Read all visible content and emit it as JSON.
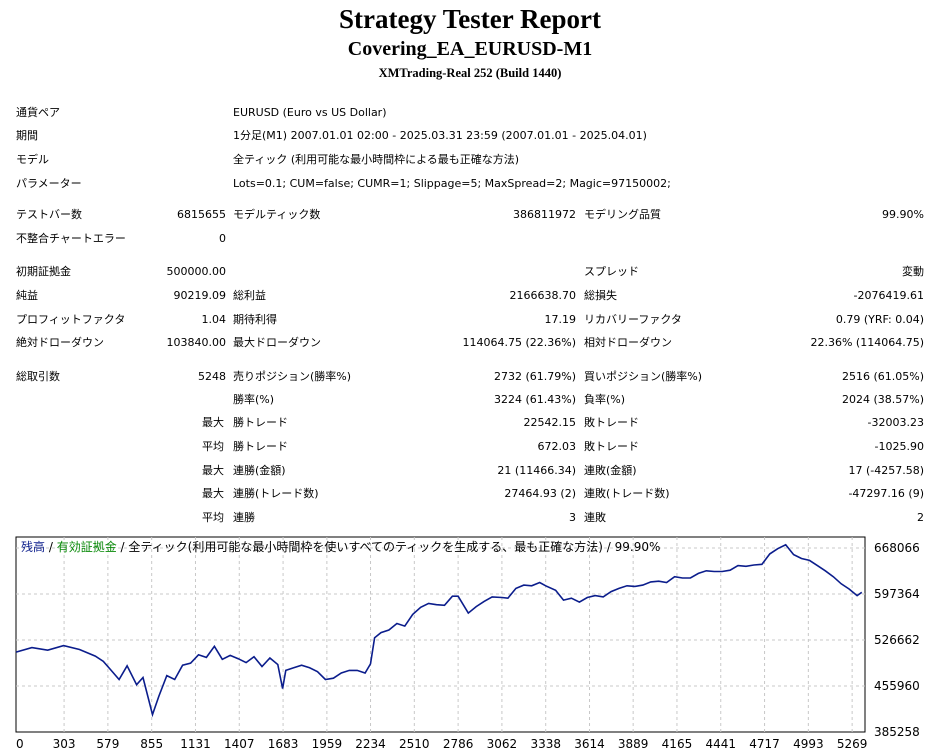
{
  "header": {
    "title": "Strategy Tester Report",
    "subtitle": "Covering_EA_EURUSD-M1",
    "build": "XMTrading-Real 252 (Build 1440)"
  },
  "info": {
    "pair_label": "通貨ペア",
    "pair_value": "EURUSD (Euro vs US Dollar)",
    "period_label": "期間",
    "period_value": "1分足(M1) 2007.01.01 02:00 - 2025.03.31 23:59 (2007.01.01 - 2025.04.01)",
    "model_label": "モデル",
    "model_value": "全ティック (利用可能な最小時間枠による最も正確な方法)",
    "params_label": "パラメーター",
    "params_value": "Lots=0.1; CUM=false; CUMR=1; Slippage=5; MaxSpread=2; Magic=97150002;"
  },
  "stats": {
    "bars_label": "テストバー数",
    "bars_value": "6815655",
    "ticks_label": "モデルティック数",
    "ticks_value": "386811972",
    "quality_label": "モデリング品質",
    "quality_value": "99.90%",
    "mismatch_label": "不整合チャートエラー",
    "mismatch_value": "0",
    "deposit_label": "初期証拠金",
    "deposit_value": "500000.00",
    "spread_label": "スプレッド",
    "spread_value": "変動",
    "net_label": "純益",
    "net_value": "90219.09",
    "gross_profit_label": "総利益",
    "gross_profit_value": "2166638.70",
    "gross_loss_label": "総損失",
    "gross_loss_value": "-2076419.61",
    "pf_label": "プロフィットファクタ",
    "pf_value": "1.04",
    "expected_label": "期待利得",
    "expected_value": "17.19",
    "recovery_label": "リカバリーファクタ",
    "recovery_value": "0.79 (YRF: 0.04)",
    "abs_dd_label": "絶対ドローダウン",
    "abs_dd_value": "103840.00",
    "max_dd_label": "最大ドローダウン",
    "max_dd_value": "114064.75 (22.36%)",
    "rel_dd_label": "相対ドローダウン",
    "rel_dd_value": "22.36% (114064.75)",
    "trades_label": "総取引数",
    "trades_value": "5248",
    "short_label": "売りポジション(勝率%)",
    "short_value": "2732 (61.79%)",
    "long_label": "買いポジション(勝率%)",
    "long_value": "2516 (61.05%)",
    "win_pct_label": "勝率(%)",
    "win_pct_value": "3224 (61.43%)",
    "loss_pct_label": "負率(%)",
    "loss_pct_value": "2024 (38.57%)",
    "max_q": "最大",
    "avg_q": "平均",
    "max_win_label": "勝トレード",
    "max_win_value": "22542.15",
    "max_loss_label": "敗トレード",
    "max_loss_value": "-32003.23",
    "avg_win_label": "勝トレード",
    "avg_win_value": "672.03",
    "avg_loss_label": "敗トレード",
    "avg_loss_value": "-1025.90",
    "cons_wins_amt_label": "連勝(金額)",
    "cons_wins_amt_value": "21 (11466.34)",
    "cons_losses_amt_label": "連敗(金額)",
    "cons_losses_amt_value": "17 (-4257.58)",
    "cons_wins_cnt_label": "連勝(トレード数)",
    "cons_wins_cnt_value": "27464.93 (2)",
    "cons_losses_cnt_label": "連敗(トレード数)",
    "cons_losses_cnt_value": "-47297.16 (9)",
    "avg_cons_wins_label": "連勝",
    "avg_cons_wins_value": "3",
    "avg_cons_losses_label": "連敗",
    "avg_cons_losses_value": "2"
  },
  "chart_data": {
    "type": "line",
    "legend": {
      "balance": "残高",
      "sep": " / ",
      "equity": "有効証拠金",
      "rest": " / 全ティック(利用可能な最小時間枠を使いすべてのティックを生成する、最も正確な方法) / 99.90%"
    },
    "colors": {
      "line": "#0b1d8c",
      "equity_legend": "#0a8a0a",
      "balance_legend": "#0b1d8c",
      "grid": "#c8c8c8"
    },
    "grid": true,
    "xlim": [
      0,
      5350
    ],
    "ylim": [
      385258,
      685000
    ],
    "x_ticks": [
      "0",
      "303",
      "579",
      "855",
      "1131",
      "1407",
      "1683",
      "1959",
      "2234",
      "2510",
      "2786",
      "3062",
      "3338",
      "3614",
      "3889",
      "4165",
      "4441",
      "4717",
      "4993",
      "5269"
    ],
    "x_tick_values": [
      0,
      303,
      579,
      855,
      1131,
      1407,
      1683,
      1959,
      2234,
      2510,
      2786,
      3062,
      3338,
      3614,
      3889,
      4165,
      4441,
      4717,
      4993,
      5269
    ],
    "y_ticks": [
      "385258",
      "455960",
      "526662",
      "597364",
      "668066"
    ],
    "y_tick_values": [
      385258,
      455960,
      526662,
      597364,
      668066
    ],
    "series": [
      {
        "x": [
          0,
          100,
          200,
          300,
          400,
          500,
          550,
          600,
          650,
          700,
          760,
          800,
          860,
          900,
          950,
          1000,
          1050,
          1100,
          1150,
          1200,
          1250,
          1300,
          1350,
          1400,
          1450,
          1500,
          1550,
          1600,
          1650,
          1680,
          1700,
          1750,
          1800,
          1850,
          1900,
          1950,
          2000,
          2050,
          2100,
          2150,
          2200,
          2234,
          2260,
          2300,
          2350,
          2400,
          2450,
          2500,
          2550,
          2600,
          2650,
          2700,
          2750,
          2786,
          2850,
          2900,
          2950,
          3000,
          3062,
          3100,
          3150,
          3200,
          3250,
          3300,
          3338,
          3400,
          3450,
          3500,
          3550,
          3600,
          3650,
          3700,
          3750,
          3800,
          3850,
          3900,
          3950,
          4000,
          4050,
          4100,
          4150,
          4200,
          4250,
          4300,
          4350,
          4400,
          4450,
          4500,
          4550,
          4600,
          4650,
          4700,
          4750,
          4800,
          4850,
          4900,
          4950,
          5000,
          5050,
          5100,
          5150,
          5200,
          5250,
          5300,
          5330
        ],
        "y": [
          508000,
          515000,
          511000,
          518000,
          512000,
          502000,
          494000,
          480000,
          466000,
          487000,
          458000,
          469000,
          412000,
          440000,
          472000,
          466000,
          488000,
          491000,
          504000,
          500000,
          517000,
          497000,
          503000,
          498000,
          492000,
          501000,
          486000,
          499000,
          489000,
          452000,
          480000,
          484000,
          488000,
          484000,
          478000,
          466000,
          468000,
          476000,
          480000,
          480000,
          476000,
          490000,
          530000,
          538000,
          542000,
          552000,
          548000,
          566000,
          577000,
          583000,
          581000,
          580000,
          594000,
          594000,
          568000,
          578000,
          586000,
          593000,
          592000,
          591000,
          606000,
          611000,
          610000,
          615000,
          610000,
          603000,
          588000,
          591000,
          585000,
          592000,
          595000,
          593000,
          601000,
          606000,
          610000,
          609000,
          611000,
          616000,
          617000,
          615000,
          624000,
          622000,
          622000,
          629000,
          633000,
          632000,
          632000,
          634000,
          641000,
          640000,
          642000,
          643000,
          659000,
          667000,
          673000,
          658000,
          652000,
          649000,
          641000,
          633000,
          624000,
          613000,
          605000,
          595000,
          600000
        ]
      }
    ]
  }
}
